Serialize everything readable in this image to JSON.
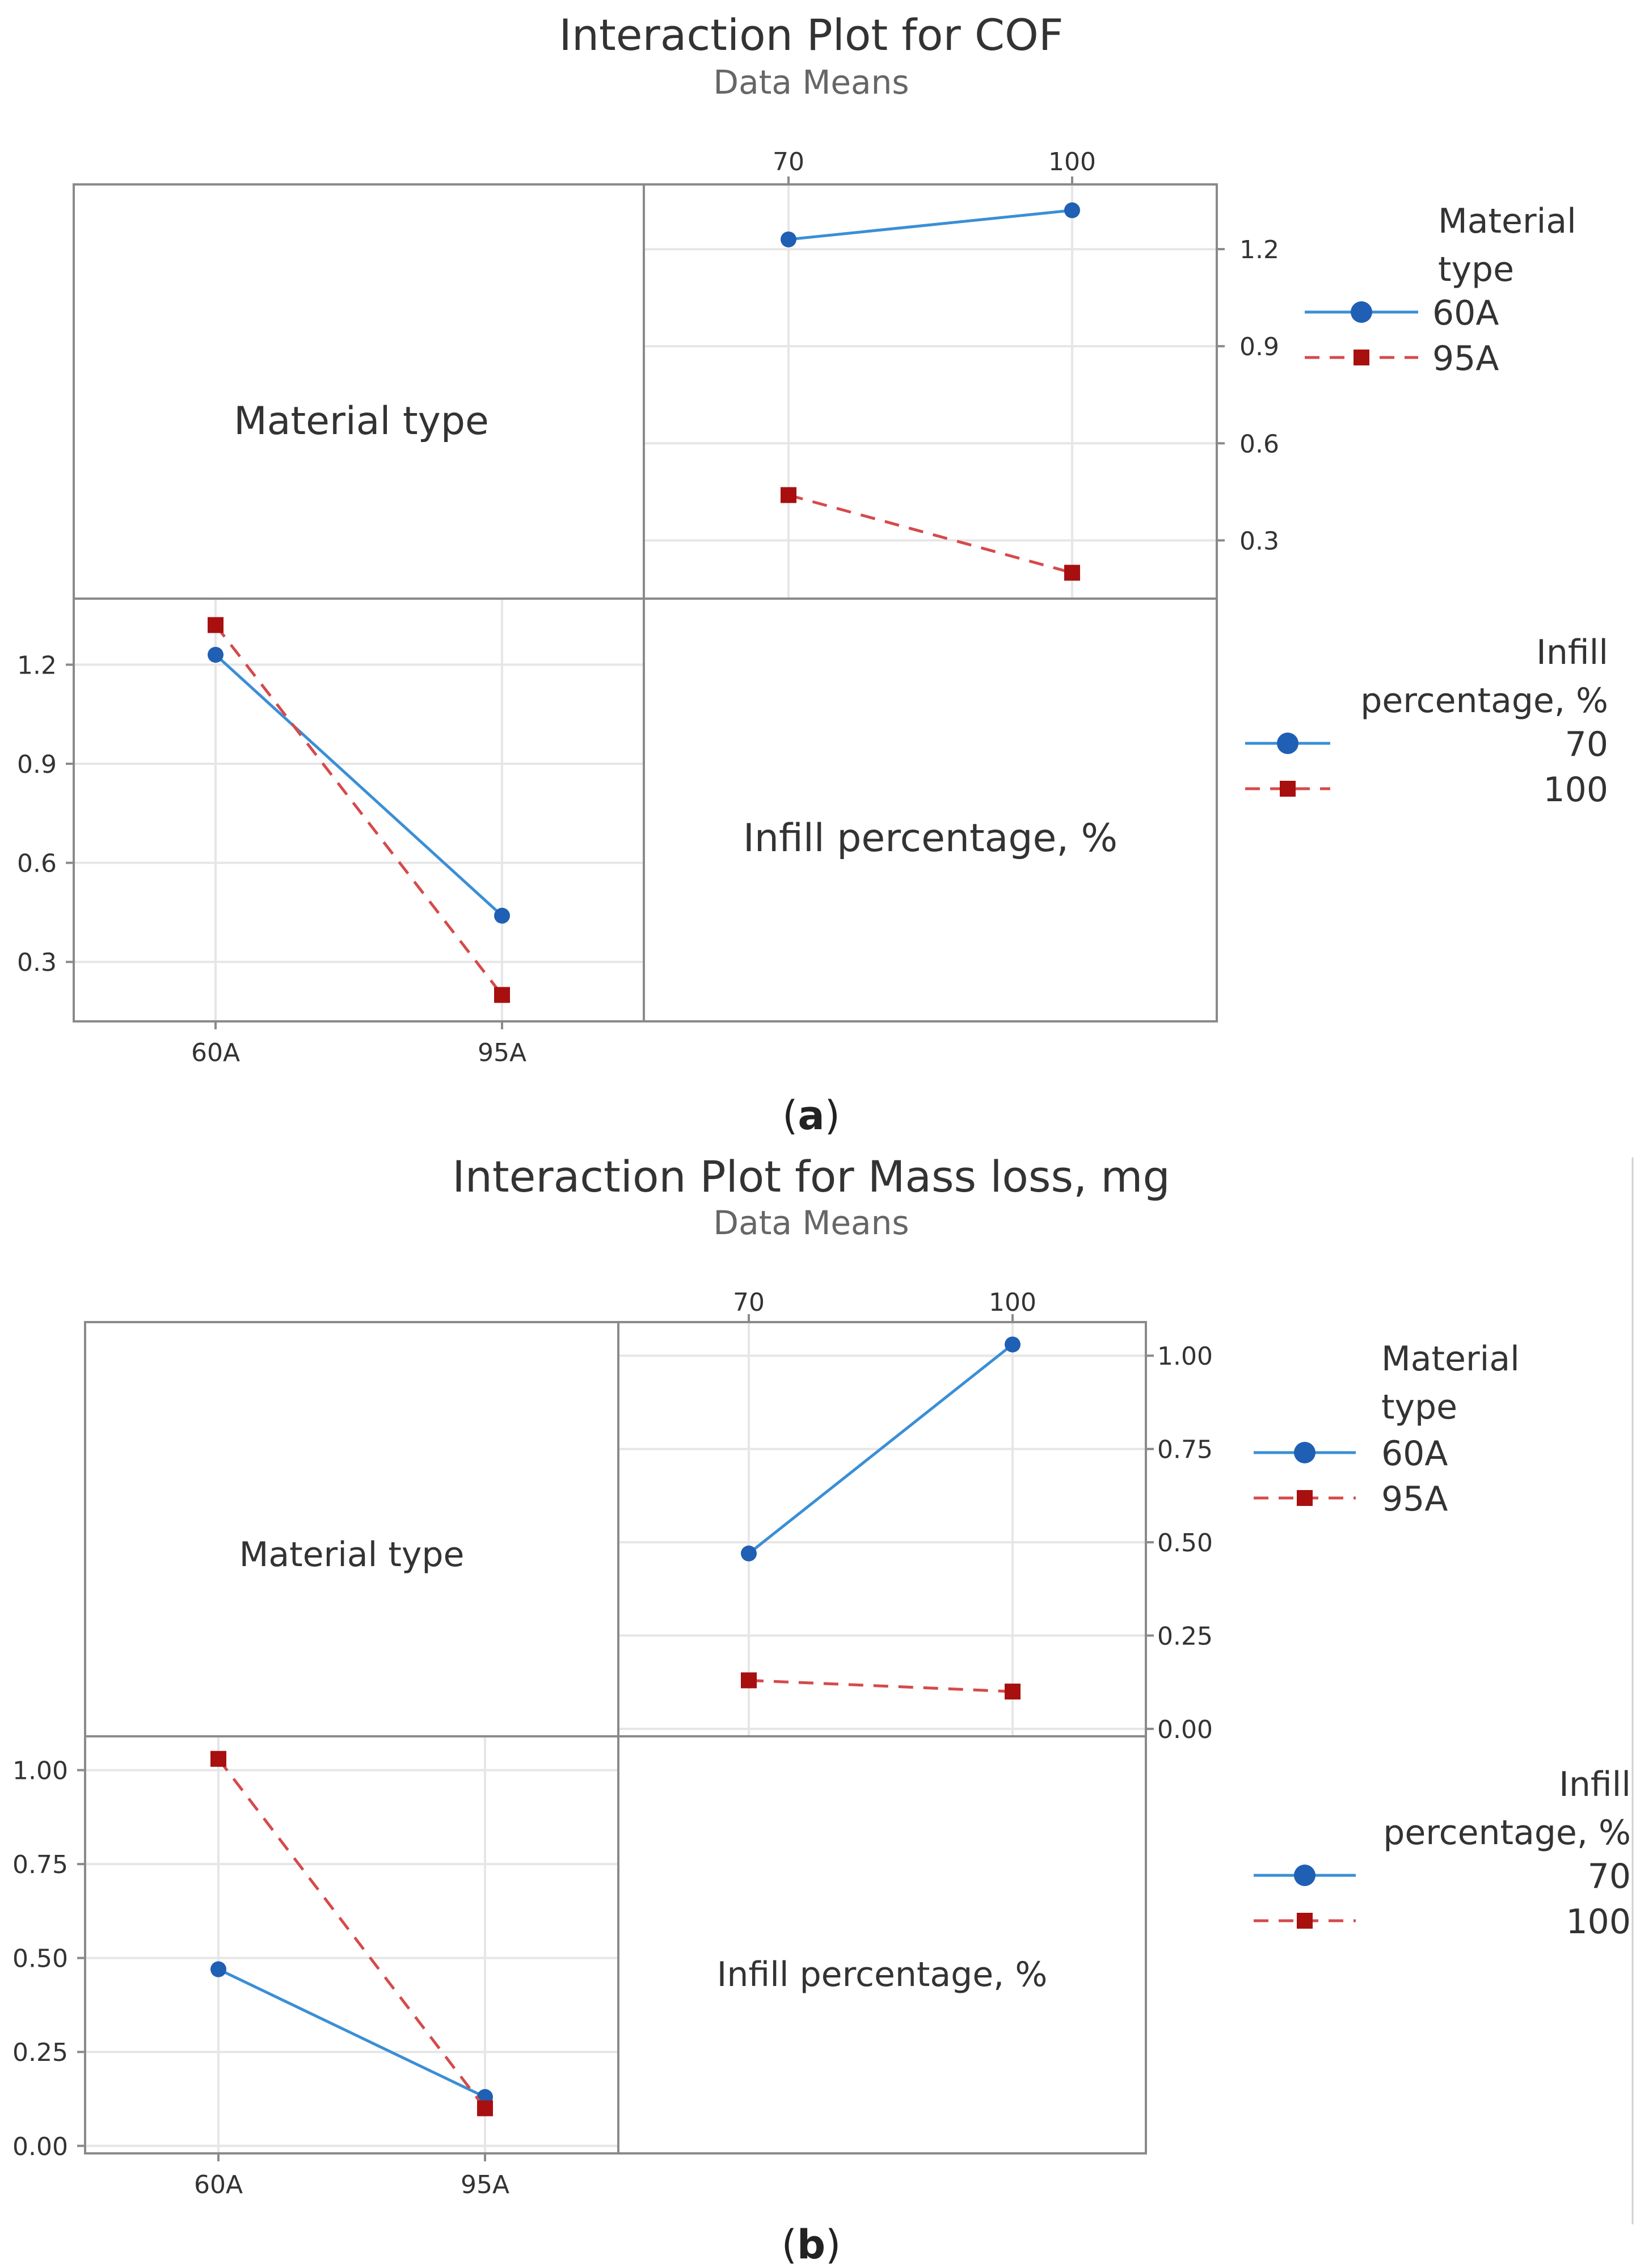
{
  "chart_data": [
    {
      "type": "interaction-matrix",
      "title": "Interaction Plot for COF",
      "subtitle": "Data Means",
      "panel_label": "a",
      "factors": [
        {
          "name": "Material type",
          "levels": [
            "60A",
            "95A"
          ]
        },
        {
          "name": "Infill percentage, %",
          "levels": [
            "70",
            "100"
          ]
        }
      ],
      "diagonal_labels": [
        "Material type",
        "Infill percentage, %"
      ],
      "ylim": [
        0.12,
        1.4
      ],
      "yticks": [
        "0.3",
        "0.6",
        "0.9",
        "1.2"
      ],
      "means": {
        "60A": {
          "70": 1.23,
          "100": 1.32
        },
        "95A": {
          "70": 0.44,
          "100": 0.2
        }
      },
      "upper_panel": {
        "x_factor": "Infill percentage, %",
        "trace_factor": "Material type",
        "x_levels": [
          "70",
          "100"
        ],
        "series": [
          {
            "name": "60A",
            "values": [
              1.23,
              1.32
            ]
          },
          {
            "name": "95A",
            "values": [
              0.44,
              0.2
            ]
          }
        ]
      },
      "lower_panel": {
        "x_factor": "Material type",
        "trace_factor": "Infill percentage, %",
        "x_levels": [
          "60A",
          "95A"
        ],
        "series": [
          {
            "name": "70",
            "values": [
              1.23,
              0.44
            ]
          },
          {
            "name": "100",
            "values": [
              1.32,
              0.2
            ]
          }
        ]
      },
      "legends": [
        {
          "title": "Material type",
          "title_lines": [
            "Material",
            "type"
          ],
          "entries": [
            "60A",
            "95A"
          ],
          "placement": "right-top"
        },
        {
          "title": "Infill percentage, %",
          "title_lines": [
            "Infill",
            "percentage, %"
          ],
          "entries": [
            "70",
            "100"
          ],
          "placement": "right-bottom"
        }
      ]
    },
    {
      "type": "interaction-matrix",
      "title": "Interaction Plot for Mass loss, mg",
      "subtitle": "Data Means",
      "panel_label": "b",
      "factors": [
        {
          "name": "Material type",
          "levels": [
            "60A",
            "95A"
          ]
        },
        {
          "name": "Infill percentage, %",
          "levels": [
            "70",
            "100"
          ]
        }
      ],
      "diagonal_labels": [
        "Material type",
        "Infill percentage, %"
      ],
      "ylim": [
        -0.02,
        1.09
      ],
      "yticks": [
        "0.00",
        "0.25",
        "0.50",
        "0.75",
        "1.00"
      ],
      "means": {
        "60A": {
          "70": 0.47,
          "100": 1.03
        },
        "95A": {
          "70": 0.13,
          "100": 0.1
        }
      },
      "upper_panel": {
        "x_factor": "Infill percentage, %",
        "trace_factor": "Material type",
        "x_levels": [
          "70",
          "100"
        ],
        "series": [
          {
            "name": "60A",
            "values": [
              0.47,
              1.03
            ]
          },
          {
            "name": "95A",
            "values": [
              0.13,
              0.1
            ]
          }
        ]
      },
      "lower_panel": {
        "x_factor": "Material type",
        "trace_factor": "Infill percentage, %",
        "x_levels": [
          "60A",
          "95A"
        ],
        "series": [
          {
            "name": "70",
            "values": [
              0.47,
              0.13
            ]
          },
          {
            "name": "100",
            "values": [
              1.03,
              0.1
            ]
          }
        ]
      },
      "legends": [
        {
          "title": "Material type",
          "title_lines": [
            "Material",
            "type"
          ],
          "entries": [
            "60A",
            "95A"
          ],
          "placement": "right-top"
        },
        {
          "title": "Infill percentage, %",
          "title_lines": [
            "Infill",
            "percentage, %"
          ],
          "entries": [
            "70",
            "100"
          ],
          "placement": "right-bottom"
        }
      ]
    }
  ],
  "colors": {
    "series1": "#1f5fb4",
    "series1_line": "#3a8fd6",
    "series2": "#a80f0f",
    "series2_line": "#d64a4a",
    "frame": "#8a8a8a",
    "grid": "#e6e6e6",
    "text": "#333333",
    "subtitle": "#666666"
  }
}
